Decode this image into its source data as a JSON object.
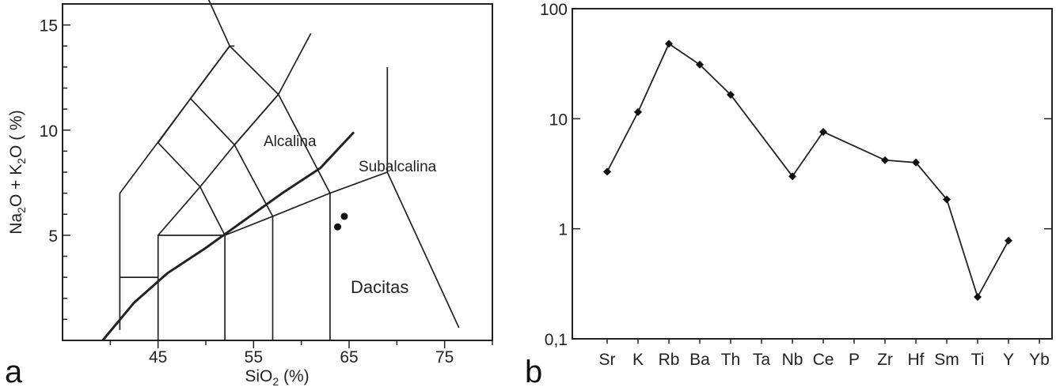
{
  "chart_data": [
    {
      "type": "scatter",
      "panel_letter": "a",
      "xlabel": "SiO₂ (%)",
      "ylabel": "Na₂O + K₂O ( %)",
      "xlim": [
        35,
        80
      ],
      "ylim": [
        0,
        16
      ],
      "x_ticks": [
        "45",
        "55",
        "65",
        "75"
      ],
      "y_ticks": [
        "5",
        "10",
        "15"
      ],
      "field_labels": [
        "Alcalina",
        "Subalcalina",
        "Dacitas"
      ],
      "points": [
        {
          "x": 63.8,
          "y": 5.4
        },
        {
          "x": 64.5,
          "y": 5.9
        }
      ]
    },
    {
      "type": "line",
      "panel_letter": "b",
      "y_scale": "log",
      "ylim": [
        0.1,
        100
      ],
      "y_ticks": [
        "0,1",
        "1",
        "10",
        "100"
      ],
      "categories": [
        "Sr",
        "K",
        "Rb",
        "Ba",
        "Th",
        "Ta",
        "Nb",
        "Ce",
        "P",
        "Zr",
        "Hf",
        "Sm",
        "Ti",
        "Y",
        "Yb"
      ],
      "points": [
        {
          "x": "Sr",
          "y": 3.3
        },
        {
          "x": "K",
          "y": 11.5
        },
        {
          "x": "Rb",
          "y": 48
        },
        {
          "x": "Ba",
          "y": 31
        },
        {
          "x": "Th",
          "y": 16.5
        },
        {
          "x": "Nb",
          "y": 3.0
        },
        {
          "x": "Ce",
          "y": 7.6
        },
        {
          "x": "Zr",
          "y": 4.2
        },
        {
          "x": "Hf",
          "y": 4.0
        },
        {
          "x": "Sm",
          "y": 1.85
        },
        {
          "x": "Ti",
          "y": 0.24
        },
        {
          "x": "Y",
          "y": 0.78
        }
      ]
    }
  ]
}
